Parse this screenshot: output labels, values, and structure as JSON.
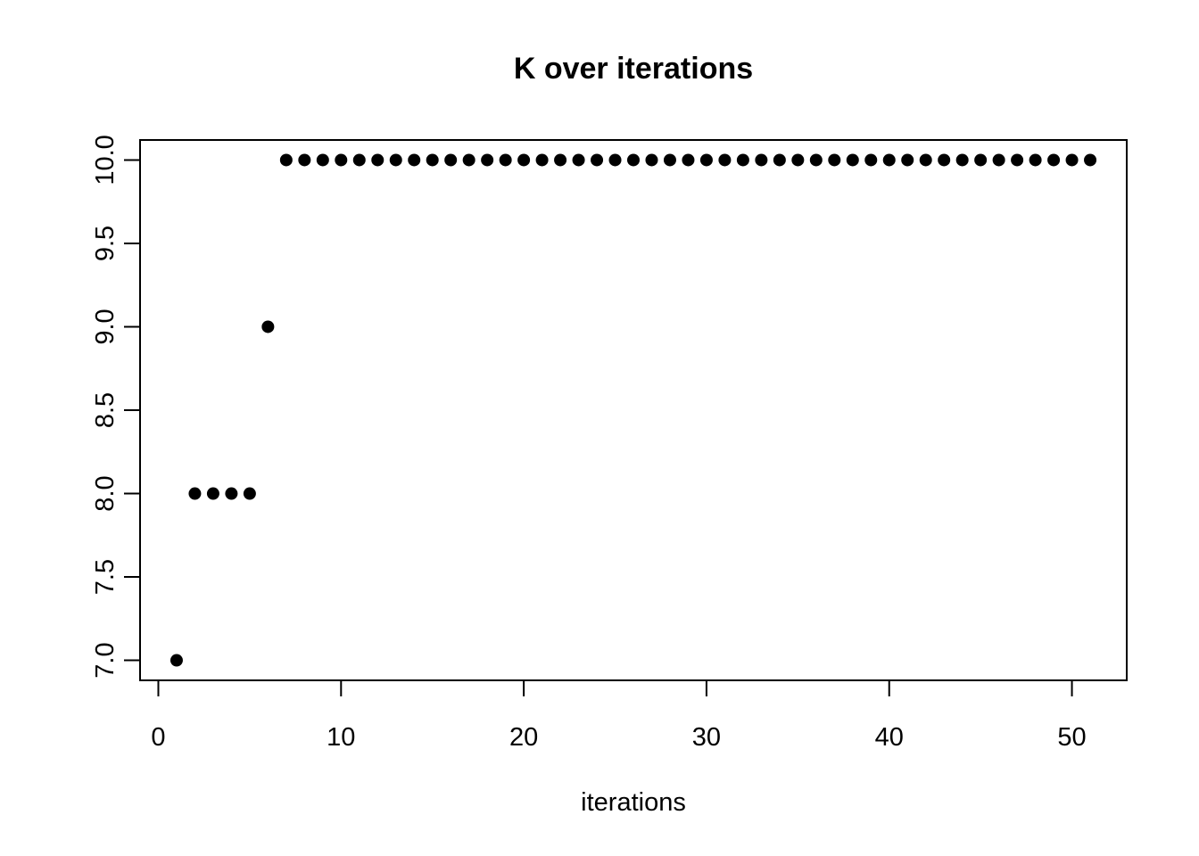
{
  "figure": {
    "background_color": "#ffffff",
    "foreground_color": "#000000"
  },
  "chart_data": {
    "type": "scatter",
    "title": "K over iterations",
    "xlabel": "iterations",
    "ylabel": "",
    "x": [
      1,
      2,
      3,
      4,
      5,
      6,
      7,
      8,
      9,
      10,
      11,
      12,
      13,
      14,
      15,
      16,
      17,
      18,
      19,
      20,
      21,
      22,
      23,
      24,
      25,
      26,
      27,
      28,
      29,
      30,
      31,
      32,
      33,
      34,
      35,
      36,
      37,
      38,
      39,
      40,
      41,
      42,
      43,
      44,
      45,
      46,
      47,
      48,
      49,
      50,
      51
    ],
    "y": [
      7,
      8,
      8,
      8,
      8,
      9,
      10,
      10,
      10,
      10,
      10,
      10,
      10,
      10,
      10,
      10,
      10,
      10,
      10,
      10,
      10,
      10,
      10,
      10,
      10,
      10,
      10,
      10,
      10,
      10,
      10,
      10,
      10,
      10,
      10,
      10,
      10,
      10,
      10,
      10,
      10,
      10,
      10,
      10,
      10,
      10,
      10,
      10,
      10,
      10,
      10
    ],
    "xlim": [
      -1,
      53
    ],
    "ylim": [
      6.88,
      10.12
    ],
    "xticks": [
      0,
      10,
      20,
      30,
      40,
      50
    ],
    "xtick_labels": [
      "0",
      "10",
      "20",
      "30",
      "40",
      "50"
    ],
    "yticks": [
      7.0,
      7.5,
      8.0,
      8.5,
      9.0,
      9.5,
      10.0
    ],
    "ytick_labels": [
      "7.0",
      "7.5",
      "8.0",
      "8.5",
      "9.0",
      "9.5",
      "10.0"
    ],
    "grid": false,
    "legend_position": "none",
    "point_style": "filled-circle",
    "point_color": "#000000",
    "axis_color": "#000000"
  }
}
